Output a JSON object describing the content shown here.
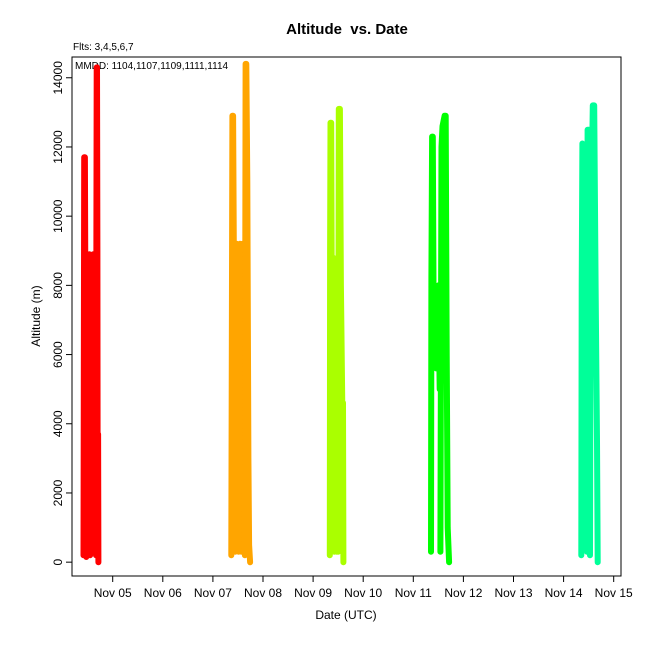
{
  "chart_data": {
    "type": "line",
    "title": "Altitude  vs. Date",
    "xlabel": "Date (UTC)",
    "ylabel": "Altitude (m)",
    "annotations": [
      "Flts: 3,4,5,6,7",
      "MMDD: 1104,1107,1109,1111,1114"
    ],
    "x_ticks": [
      "Nov 05",
      "Nov 06",
      "Nov 07",
      "Nov 08",
      "Nov 09",
      "Nov 10",
      "Nov 11",
      "Nov 12",
      "Nov 13",
      "Nov 14",
      "Nov 15"
    ],
    "y_ticks": [
      "0",
      "2000",
      "4000",
      "6000",
      "8000",
      "10000",
      "12000",
      "14000"
    ],
    "xlim": [
      "2011-11-04T16:30",
      "2011-11-15T15:30"
    ],
    "ylim": [
      -400,
      14600
    ],
    "grid": false,
    "series": [
      {
        "color": "#ff0000",
        "segments": [
          {
            "x": [
              "2011-11-04T22:00",
              "2011-11-04T22:10",
              "2011-11-04T22:20",
              "2011-11-04T22:40",
              "2011-11-04T23:20",
              "2011-11-04T23:50",
              "2011-11-05T00:20",
              "2011-11-05T00:50",
              "2011-11-05T01:10",
              "2011-11-05T01:40",
              "2011-11-05T02:20",
              "2011-11-05T02:40"
            ],
            "y": [
              200,
              5000,
              11700,
              11700,
              150,
              8500,
              300,
              8900,
              200,
              8700,
              300,
              8900
            ]
          },
          {
            "x": [
              "2011-11-05T04:00",
              "2011-11-05T04:10",
              "2011-11-05T04:20",
              "2011-11-05T04:30",
              "2011-11-05T04:40",
              "2011-11-05T04:50",
              "2011-11-05T05:00",
              "2011-11-05T05:10"
            ],
            "y": [
              200,
              9500,
              14300,
              14300,
              9000,
              500,
              3700,
              0
            ]
          }
        ]
      },
      {
        "color": "#ffa500",
        "segments": [
          {
            "x": [
              "2011-11-07T20:50",
              "2011-11-07T21:20",
              "2011-11-07T21:40",
              "2011-11-07T22:00",
              "2011-11-07T22:40",
              "2011-11-07T23:20",
              "2011-11-08T00:20",
              "2011-11-08T01:00",
              "2011-11-08T01:40",
              "2011-11-08T02:20"
            ],
            "y": [
              200,
              12900,
              12900,
              9200,
              300,
              9200,
              300,
              9200,
              300,
              9200
            ]
          },
          {
            "x": [
              "2011-11-08T03:20",
              "2011-11-08T03:30",
              "2011-11-08T03:40",
              "2011-11-08T04:00",
              "2011-11-08T04:30",
              "2011-11-08T05:00",
              "2011-11-08T05:20",
              "2011-11-08T05:50"
            ],
            "y": [
              200,
              9000,
              14400,
              14400,
              11000,
              3000,
              500,
              0
            ]
          }
        ]
      },
      {
        "color": "#aaff00",
        "segments": [
          {
            "x": [
              "2011-11-09T20:00",
              "2011-11-09T20:10",
              "2011-11-09T20:20",
              "2011-11-09T20:40",
              "2011-11-09T21:20",
              "2011-11-09T21:40",
              "2011-11-09T22:10",
              "2011-11-09T22:50",
              "2011-11-09T23:20"
            ],
            "y": [
              200,
              9000,
              12700,
              12700,
              600,
              8800,
              300,
              8600,
              300
            ]
          },
          {
            "x": [
              "2011-11-10T00:00",
              "2011-11-10T00:10",
              "2011-11-10T00:20",
              "2011-11-10T00:50",
              "2011-11-10T01:20",
              "2011-11-10T02:00",
              "2011-11-10T02:20",
              "2011-11-10T02:30"
            ],
            "y": [
              300,
              8000,
              13100,
              13100,
              8000,
              4500,
              4600,
              0
            ]
          }
        ]
      },
      {
        "color": "#00ff00",
        "segments": [
          {
            "x": [
              "2011-11-11T20:30",
              "2011-11-11T20:40",
              "2011-11-11T21:00",
              "2011-11-11T21:20",
              "2011-11-11T21:40",
              "2011-11-11T22:00",
              "2011-11-11T23:00",
              "2011-11-12T00:00",
              "2011-11-12T00:40"
            ],
            "y": [
              300,
              8200,
              12300,
              12300,
              7900,
              8000,
              5600,
              8000,
              5000
            ]
          },
          {
            "x": [
              "2011-11-12T01:00",
              "2011-11-12T01:30",
              "2011-11-12T02:00",
              "2011-11-12T03:00",
              "2011-11-12T03:30",
              "2011-11-12T04:00",
              "2011-11-12T04:30",
              "2011-11-12T05:10"
            ],
            "y": [
              300,
              12000,
              12600,
              12900,
              12900,
              6000,
              1000,
              0
            ]
          }
        ]
      },
      {
        "color": "#00ff99",
        "segments": [
          {
            "x": [
              "2011-11-14T20:30",
              "2011-11-14T20:40",
              "2011-11-14T21:00",
              "2011-11-14T21:20",
              "2011-11-14T21:50",
              "2011-11-14T22:20",
              "2011-11-14T22:40"
            ],
            "y": [
              200,
              8000,
              12100,
              11800,
              500,
              3000,
              400
            ]
          },
          {
            "x": [
              "2011-11-14T23:10",
              "2011-11-14T23:30",
              "2011-11-15T00:10",
              "2011-11-15T00:40",
              "2011-11-15T01:00",
              "2011-11-15T02:00",
              "2011-11-15T02:40",
              "2011-11-15T03:20",
              "2011-11-15T04:00",
              "2011-11-15T04:20"
            ],
            "y": [
              300,
              12500,
              12500,
              200,
              9000,
              13200,
              13200,
              8000,
              3500,
              0
            ]
          }
        ]
      }
    ]
  }
}
